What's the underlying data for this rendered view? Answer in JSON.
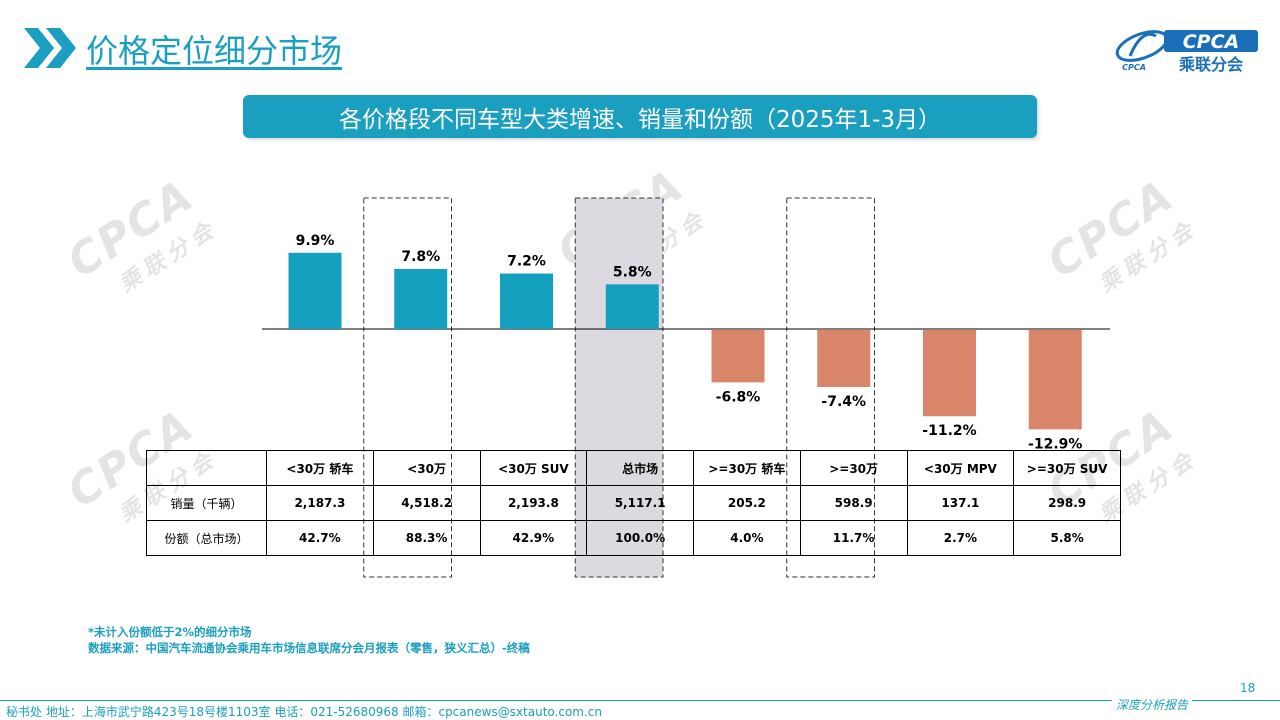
{
  "header": {
    "title": "价格定位细分市场"
  },
  "logo": {
    "text": "CPCA",
    "subtext": "乘联分会",
    "small": "CPCA"
  },
  "subtitle": "各价格段不同车型大类增速、销量和份额（2025年1-3月）",
  "watermark": {
    "text": "CPCA",
    "subtext": "乘联分会"
  },
  "colors": {
    "accent": "#1b9fc0",
    "positive": "#149fbf",
    "negative": "#d8856a",
    "highlight": "#dcdae0"
  },
  "chart_data": {
    "type": "bar",
    "categories": [
      "<30万 轿车",
      "<30万",
      "<30万 SUV",
      "总市场",
      ">=30万 轿车",
      ">=30万",
      "<30万 MPV",
      ">=30万 SUV"
    ],
    "values": [
      9.9,
      7.8,
      7.2,
      5.8,
      -6.8,
      -7.4,
      -11.2,
      -12.9
    ],
    "value_labels": [
      "9.9%",
      "7.8%",
      "7.2%",
      "5.8%",
      "-6.8%",
      "-7.4%",
      "-11.2%",
      "-12.9%"
    ],
    "highlight_solid": [
      3
    ],
    "highlight_dashed": [
      1,
      5
    ],
    "table": {
      "rows": [
        {
          "label": "销量（千辆）",
          "values": [
            "2,187.3",
            "4,518.2",
            "2,193.8",
            "5,117.1",
            "205.2",
            "598.9",
            "137.1",
            "298.9"
          ]
        },
        {
          "label": "份额（总市场）",
          "values": [
            "42.7%",
            "88.3%",
            "42.9%",
            "100.0%",
            "4.0%",
            "11.7%",
            "2.7%",
            "5.8%"
          ]
        }
      ]
    }
  },
  "notes": {
    "note1": "*未计入份额低于2%的细分市场",
    "note2": "数据来源：中国汽车流通协会乘用车市场信息联席分会月报表（零售，狭义汇总）-终稿"
  },
  "page_number": "18",
  "footer": {
    "text": "秘书处   地址：上海市武宁路423号18号楼1103室   电话：021-52680968   邮箱：cpcanews@sxtauto.com.cn",
    "report": "深度分析报告"
  }
}
